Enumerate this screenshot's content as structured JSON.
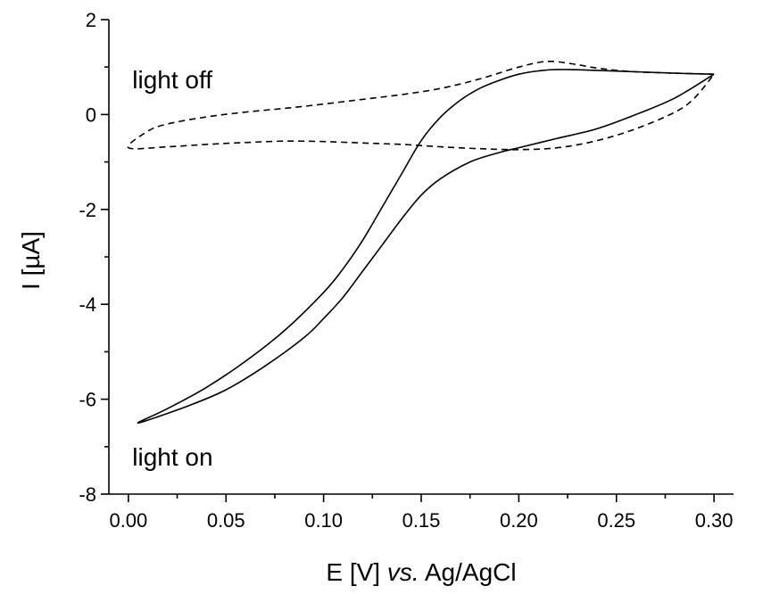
{
  "chart_data": {
    "type": "line",
    "title": "",
    "xlabel_main": "E [V] ",
    "xlabel_italic": "vs.",
    "xlabel_tail": " Ag/AgCl",
    "ylabel": "I [µA]",
    "xlim": [
      -0.01,
      0.31
    ],
    "ylim": [
      -8,
      2
    ],
    "x_ticks": [
      0.0,
      0.05,
      0.1,
      0.15,
      0.2,
      0.25,
      0.3
    ],
    "x_tick_labels": [
      "0.00",
      "0.05",
      "0.10",
      "0.15",
      "0.20",
      "0.25",
      "0.30"
    ],
    "y_ticks": [
      -8,
      -6,
      -4,
      -2,
      0,
      2
    ],
    "y_tick_labels": [
      "-8",
      "-6",
      "-4",
      "-2",
      "0",
      "2"
    ],
    "grid": false,
    "annotations": [
      {
        "text": "light off",
        "x": 0.002,
        "y": 0.55
      },
      {
        "text": "light on",
        "x": 0.002,
        "y": -7.4
      }
    ],
    "series": [
      {
        "style": "solid",
        "points": [
          [
            0.3,
            0.85
          ],
          [
            0.28,
            0.35
          ],
          [
            0.26,
            0.0
          ],
          [
            0.24,
            -0.3
          ],
          [
            0.22,
            -0.5
          ],
          [
            0.2,
            -0.7
          ],
          [
            0.19,
            -0.8
          ],
          [
            0.175,
            -1.0
          ],
          [
            0.16,
            -1.35
          ],
          [
            0.15,
            -1.7
          ],
          [
            0.14,
            -2.2
          ],
          [
            0.13,
            -2.75
          ],
          [
            0.12,
            -3.3
          ],
          [
            0.11,
            -3.85
          ],
          [
            0.1,
            -4.3
          ],
          [
            0.09,
            -4.7
          ],
          [
            0.07,
            -5.3
          ],
          [
            0.05,
            -5.8
          ],
          [
            0.03,
            -6.15
          ],
          [
            0.005,
            -6.5
          ],
          [
            0.02,
            -6.2
          ],
          [
            0.04,
            -5.75
          ],
          [
            0.06,
            -5.2
          ],
          [
            0.08,
            -4.55
          ],
          [
            0.1,
            -3.75
          ],
          [
            0.11,
            -3.25
          ],
          [
            0.12,
            -2.65
          ],
          [
            0.13,
            -1.95
          ],
          [
            0.14,
            -1.25
          ],
          [
            0.15,
            -0.55
          ],
          [
            0.16,
            -0.05
          ],
          [
            0.17,
            0.3
          ],
          [
            0.18,
            0.55
          ],
          [
            0.19,
            0.72
          ],
          [
            0.2,
            0.85
          ],
          [
            0.21,
            0.92
          ],
          [
            0.22,
            0.95
          ],
          [
            0.24,
            0.93
          ],
          [
            0.26,
            0.9
          ],
          [
            0.28,
            0.87
          ],
          [
            0.3,
            0.85
          ]
        ]
      },
      {
        "style": "dashed",
        "points": [
          [
            0.3,
            0.85
          ],
          [
            0.26,
            0.9
          ],
          [
            0.24,
            0.98
          ],
          [
            0.23,
            1.05
          ],
          [
            0.215,
            1.12
          ],
          [
            0.2,
            1.0
          ],
          [
            0.18,
            0.75
          ],
          [
            0.16,
            0.55
          ],
          [
            0.14,
            0.42
          ],
          [
            0.12,
            0.32
          ],
          [
            0.1,
            0.22
          ],
          [
            0.08,
            0.13
          ],
          [
            0.06,
            0.05
          ],
          [
            0.04,
            -0.05
          ],
          [
            0.02,
            -0.2
          ],
          [
            0.01,
            -0.35
          ],
          [
            0.0,
            -0.7
          ],
          [
            0.02,
            -0.68
          ],
          [
            0.04,
            -0.63
          ],
          [
            0.06,
            -0.59
          ],
          [
            0.08,
            -0.56
          ],
          [
            0.1,
            -0.57
          ],
          [
            0.12,
            -0.6
          ],
          [
            0.14,
            -0.63
          ],
          [
            0.16,
            -0.68
          ],
          [
            0.18,
            -0.72
          ],
          [
            0.2,
            -0.74
          ],
          [
            0.22,
            -0.7
          ],
          [
            0.24,
            -0.55
          ],
          [
            0.26,
            -0.3
          ],
          [
            0.28,
            0.05
          ],
          [
            0.29,
            0.35
          ],
          [
            0.3,
            0.85
          ]
        ]
      }
    ]
  }
}
